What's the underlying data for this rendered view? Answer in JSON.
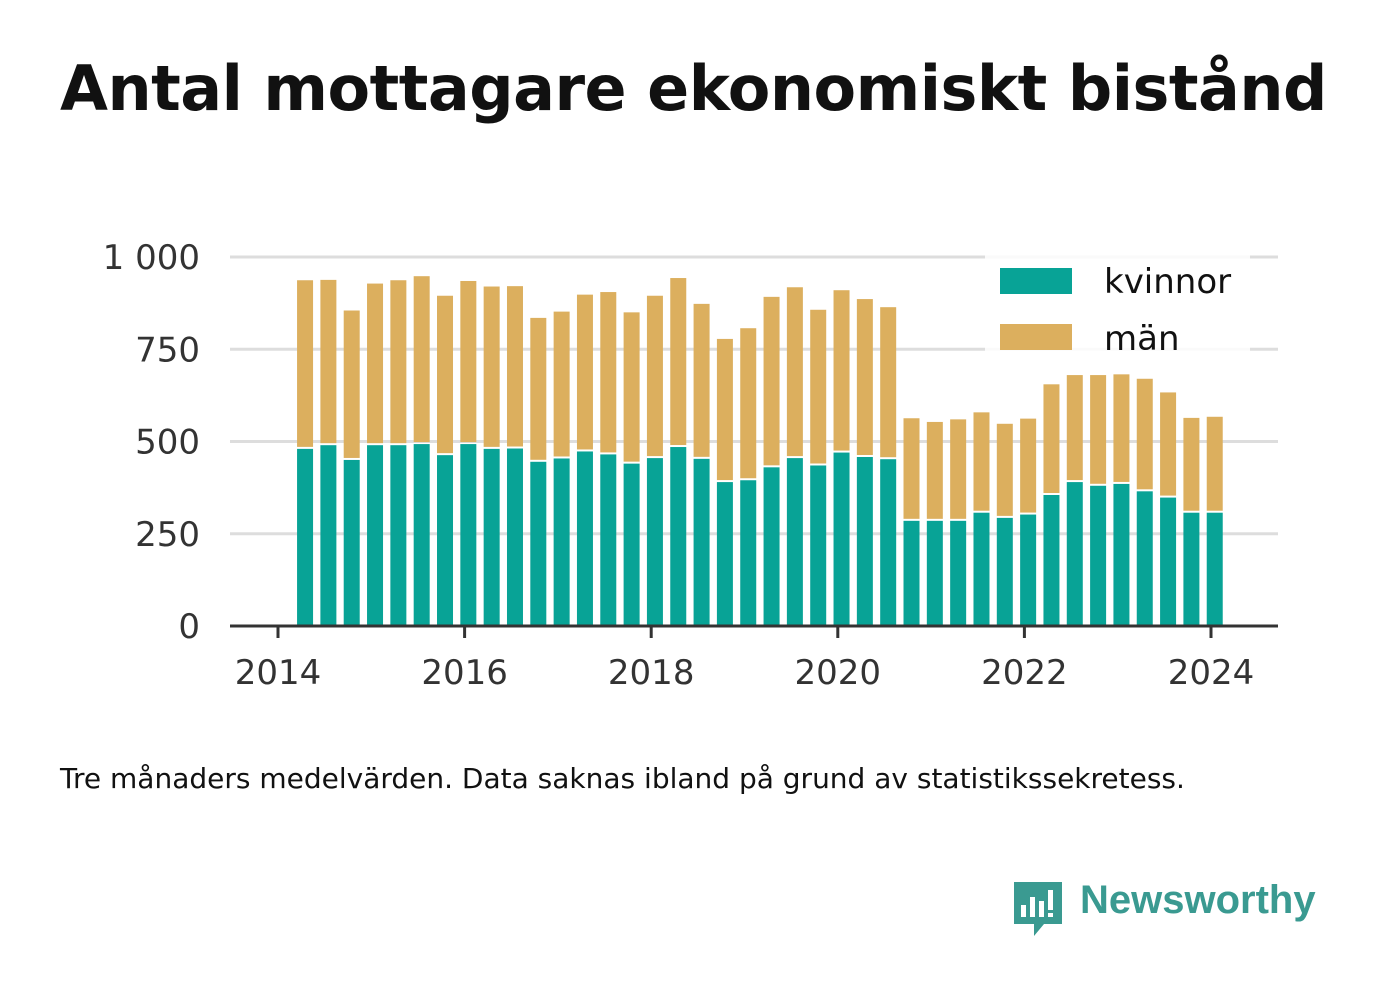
{
  "title": "Antal mottagare ekonomiskt bistånd",
  "note": "Tre månaders medelvärden. Data saknas ibland på grund av statistikssekretess.",
  "brand": {
    "name": "Newsworthy",
    "icon": "newsworthy-bar-chart-icon",
    "color": "#3a9a91"
  },
  "colors": {
    "kvinnor": "#08a396",
    "man": "#dcaf5e",
    "grid": "#dddddd",
    "axis": "#333333"
  },
  "chart_data": {
    "type": "bar",
    "stacked": true,
    "x_axis": {
      "ticks": [
        "2014",
        "2016",
        "2018",
        "2020",
        "2022",
        "2024"
      ],
      "range": [
        2014.0,
        2024.7
      ]
    },
    "y_axis": {
      "ticks": [
        "0",
        "250",
        "500",
        "750",
        "1 000"
      ],
      "range": [
        0,
        1000
      ]
    },
    "grid": true,
    "legend": {
      "placement": "top-right"
    },
    "x": [
      2014.29,
      2014.54,
      2014.79,
      2015.04,
      2015.29,
      2015.54,
      2015.79,
      2016.04,
      2016.29,
      2016.54,
      2016.79,
      2017.04,
      2017.29,
      2017.54,
      2017.79,
      2018.04,
      2018.29,
      2018.54,
      2018.79,
      2019.04,
      2019.29,
      2019.54,
      2019.79,
      2020.04,
      2020.29,
      2020.54,
      2020.79,
      2021.04,
      2021.29,
      2021.54,
      2021.79,
      2022.04,
      2022.29,
      2022.54,
      2022.79,
      2023.04,
      2023.29,
      2023.54,
      2023.79,
      2024.04
    ],
    "series": [
      {
        "name": "kvinnor",
        "values": [
          480,
          490,
          450,
          490,
          490,
          493,
          463,
          493,
          480,
          481,
          445,
          454,
          473,
          465,
          440,
          455,
          485,
          453,
          390,
          395,
          430,
          455,
          435,
          470,
          458,
          452,
          285,
          285,
          285,
          307,
          293,
          302,
          355,
          390,
          380,
          385,
          365,
          348,
          307,
          307
        ]
      },
      {
        "name": "män",
        "values": [
          457,
          448,
          405,
          438,
          447,
          455,
          432,
          442,
          440,
          440,
          390,
          398,
          425,
          440,
          410,
          440,
          458,
          420,
          388,
          412,
          462,
          463,
          422,
          440,
          428,
          412,
          278,
          268,
          275,
          272,
          255,
          260,
          300,
          290,
          300,
          297,
          305,
          285,
          257,
          260
        ]
      }
    ]
  }
}
